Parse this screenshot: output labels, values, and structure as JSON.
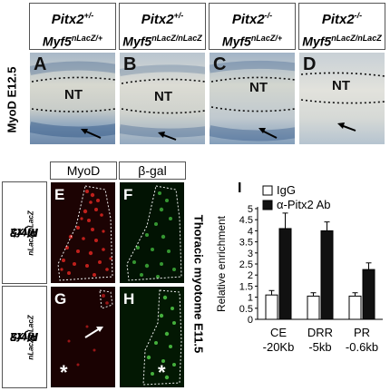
{
  "genotypes_top": [
    {
      "line1": "Pitx2",
      "sup1": "+/-",
      "line2": "Myf5",
      "sup2": "nLacZ/+"
    },
    {
      "line1": "Pitx2",
      "sup1": "+/-",
      "line2": "Myf5",
      "sup2": "nLacZ/nLacZ"
    },
    {
      "line1": "Pitx2",
      "sup1": "-/-",
      "line2": "Myf5",
      "sup2": "nLacZ/+"
    },
    {
      "line1": "Pitx2",
      "sup1": "-/-",
      "line2": "Myf5",
      "sup2": "nLacZ/nLacZ"
    }
  ],
  "top_panels": [
    {
      "letter": "A",
      "nt": "NT"
    },
    {
      "letter": "B",
      "nt": "NT"
    },
    {
      "letter": "C",
      "nt": "NT"
    },
    {
      "letter": "D",
      "nt": "NT"
    }
  ],
  "top_side_label": "MyoD E12.5",
  "fluo_headers": [
    "MyoD",
    "β-gal"
  ],
  "fluo_rows": [
    {
      "geno1": "Pitx2",
      "sup1": "+/+",
      "geno2": "Myf5",
      "sup2": "nLacZ/nLacZ",
      "letters": [
        "E",
        "F"
      ]
    },
    {
      "geno1": "Pitx2",
      "sup1": "-/-",
      "geno2": "Myf5",
      "sup2": "nLacZ/nLacZ",
      "letters": [
        "G",
        "H"
      ]
    }
  ],
  "asterisk": "*",
  "fluo_side_label": "Thoracic myotome E11.5",
  "chart_panel_letter": "I",
  "chart_data": {
    "type": "bar",
    "categories": [
      {
        "line1": "CE",
        "line2": "-20Kb"
      },
      {
        "line1": "DRR",
        "line2": "-5kb"
      },
      {
        "line1": "PR",
        "line2": "-0.6kb"
      }
    ],
    "series": [
      {
        "name": "IgG",
        "values": [
          1.1,
          1.05,
          1.05
        ],
        "errors": [
          0.2,
          0.15,
          0.15
        ],
        "color": "#ffffff"
      },
      {
        "name": "α-Pitx2 Ab",
        "values": [
          4.1,
          4.0,
          2.25
        ],
        "errors": [
          0.7,
          0.4,
          0.3
        ],
        "color": "#111111"
      }
    ],
    "ylabel": "Relative enrichment",
    "ylim": [
      0,
      5
    ],
    "yticks": [
      0,
      0.5,
      1,
      1.5,
      2,
      2.5,
      3,
      3.5,
      4,
      4.5,
      5
    ],
    "legend_position": "top-left"
  }
}
